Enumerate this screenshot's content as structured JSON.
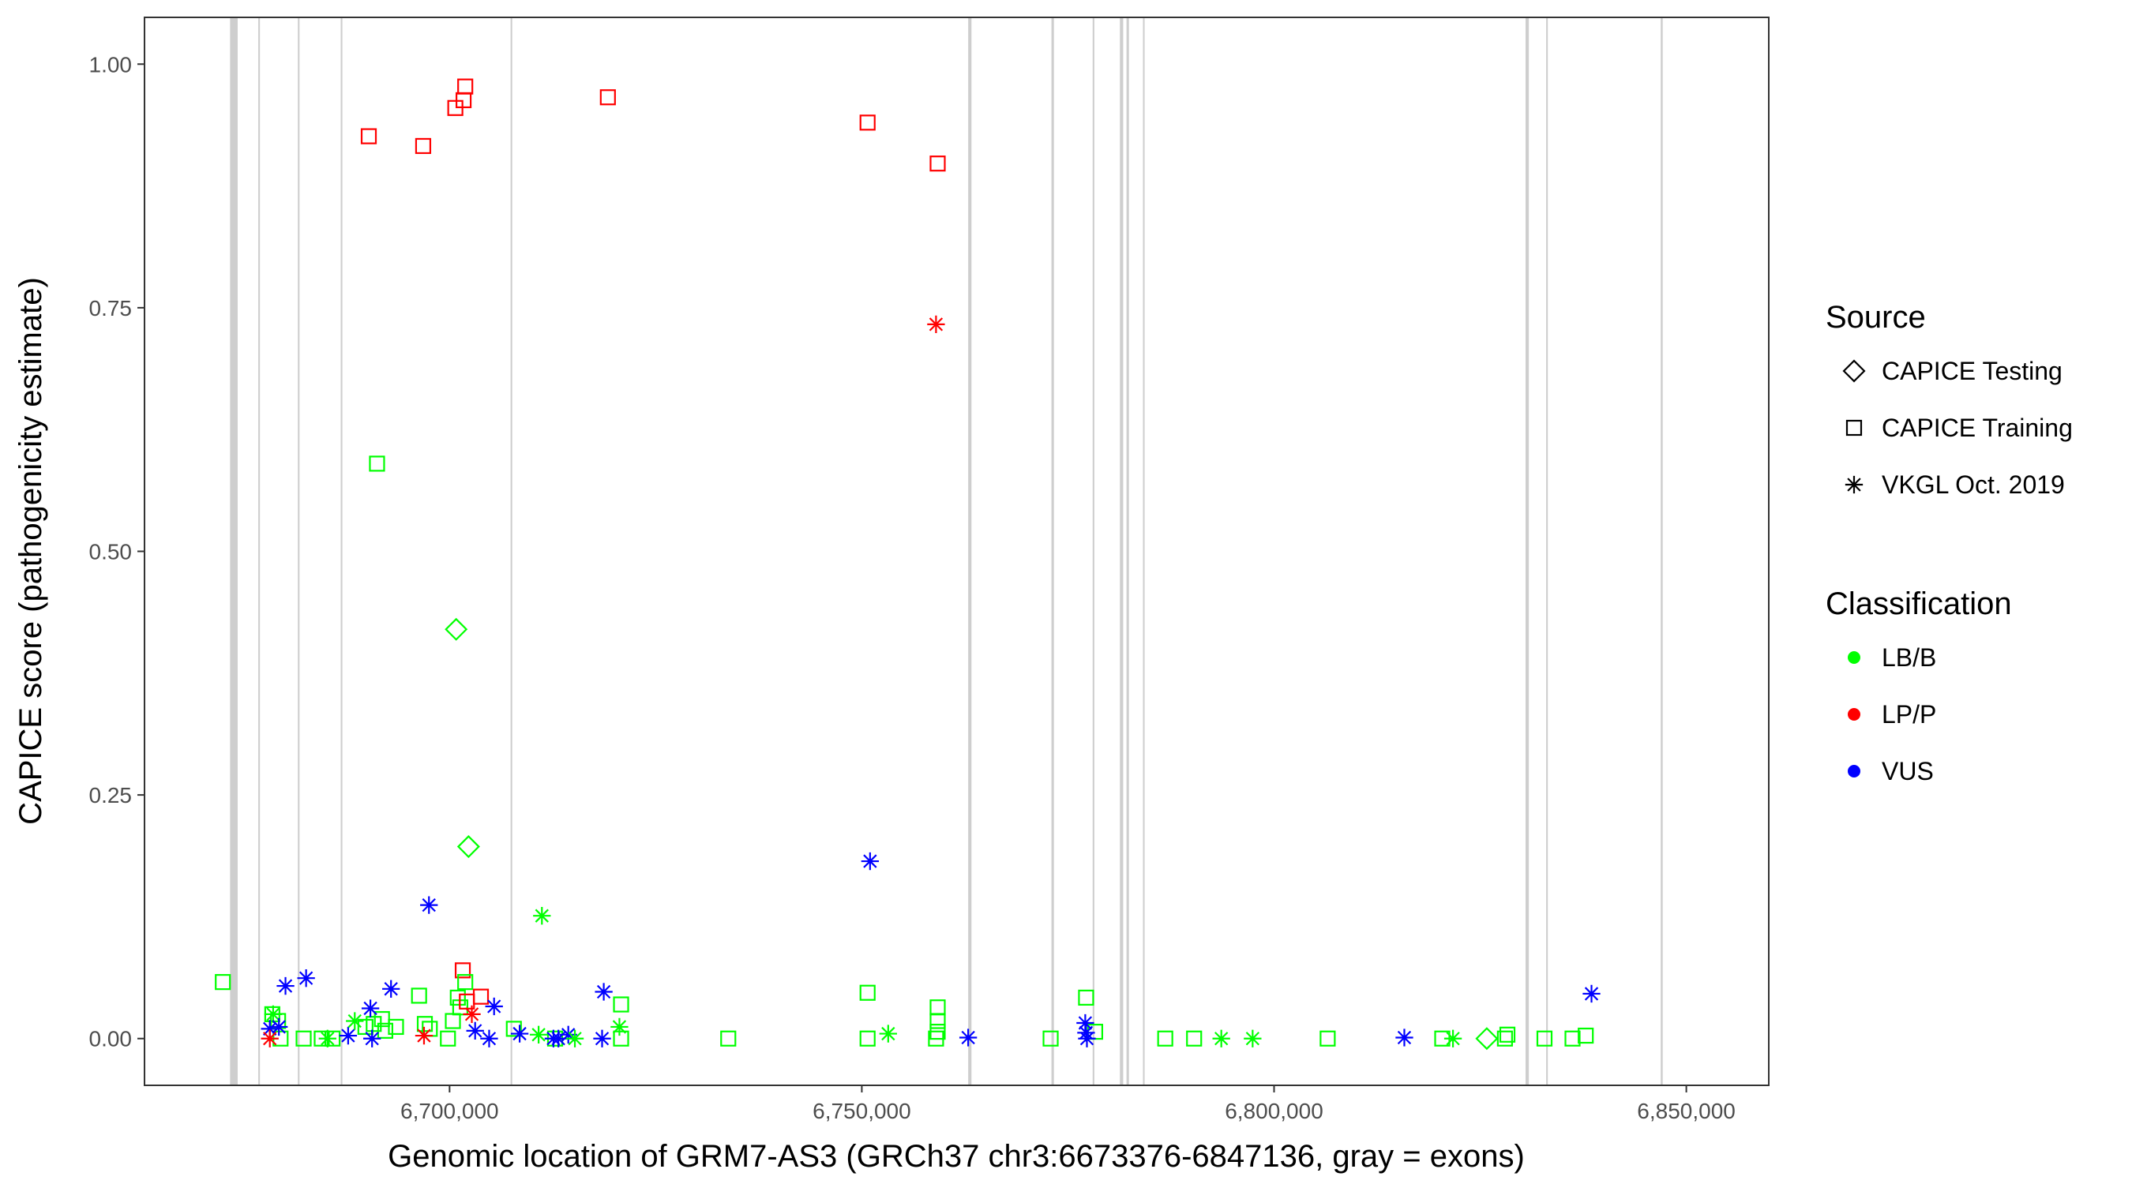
{
  "chart_data": {
    "type": "scatter",
    "xlabel": "Genomic location of GRM7-AS3 (GRCh37 chr3:6673376-6847136, gray = exons)",
    "ylabel": "CAPICE score (pathogenicity estimate)",
    "xlim": [
      6663000,
      6860000
    ],
    "ylim": [
      -0.048,
      1.048
    ],
    "x_ticks": [
      6700000,
      6750000,
      6800000,
      6850000
    ],
    "x_tick_labels": [
      "6,700,000",
      "6,750,000",
      "6,800,000",
      "6,850,000"
    ],
    "y_ticks": [
      0.0,
      0.25,
      0.5,
      0.75,
      1.0
    ],
    "y_tick_labels": [
      "0.00",
      "0.25",
      "0.50",
      "0.75",
      "1.00"
    ],
    "grid": false,
    "exons": [
      {
        "start": 6673376,
        "end": 6674300
      },
      {
        "start": 6676800,
        "end": 6677000
      },
      {
        "start": 6681600,
        "end": 6681800
      },
      {
        "start": 6686800,
        "end": 6687000
      },
      {
        "start": 6707400,
        "end": 6707600
      },
      {
        "start": 6762900,
        "end": 6763300
      },
      {
        "start": 6773000,
        "end": 6773300
      },
      {
        "start": 6778000,
        "end": 6778200
      },
      {
        "start": 6781300,
        "end": 6781700
      },
      {
        "start": 6782100,
        "end": 6782400
      },
      {
        "start": 6784100,
        "end": 6784300
      },
      {
        "start": 6830500,
        "end": 6830900
      },
      {
        "start": 6833000,
        "end": 6833200
      },
      {
        "start": 6846900,
        "end": 6847136
      }
    ],
    "legend": {
      "placement": "right",
      "source_title": "Source",
      "source_entries": [
        {
          "label": "CAPICE Testing",
          "shape": "diamond"
        },
        {
          "label": "CAPICE Training",
          "shape": "square"
        },
        {
          "label": "VKGL Oct. 2019",
          "shape": "asterisk"
        }
      ],
      "class_title": "Classification",
      "class_entries": [
        {
          "label": "LB/B",
          "color": "#00ff00"
        },
        {
          "label": "LP/P",
          "color": "#ff0000"
        },
        {
          "label": "VUS",
          "color": "#0000ff"
        }
      ]
    },
    "colors": {
      "LB/B": "#00ff00",
      "LP/P": "#ff0000",
      "VUS": "#0000ff",
      "exon": "#bdbdbd"
    },
    "points": [
      {
        "x": 6672500,
        "y": 0.058,
        "source": "CAPICE Training",
        "cls": "LB/B"
      },
      {
        "x": 6678500,
        "y": 0.025,
        "source": "CAPICE Training",
        "cls": "LB/B"
      },
      {
        "x": 6679200,
        "y": 0.018,
        "source": "CAPICE Training",
        "cls": "LB/B"
      },
      {
        "x": 6679500,
        "y": 0.0,
        "source": "CAPICE Training",
        "cls": "LB/B"
      },
      {
        "x": 6682300,
        "y": 0.0,
        "source": "CAPICE Training",
        "cls": "LB/B"
      },
      {
        "x": 6684500,
        "y": 0.0,
        "source": "CAPICE Training",
        "cls": "LB/B"
      },
      {
        "x": 6685800,
        "y": 0.0,
        "source": "CAPICE Training",
        "cls": "LB/B"
      },
      {
        "x": 6690200,
        "y": 0.926,
        "source": "CAPICE Training",
        "cls": "LP/P"
      },
      {
        "x": 6689800,
        "y": 0.012,
        "source": "CAPICE Training",
        "cls": "LB/B"
      },
      {
        "x": 6690800,
        "y": 0.015,
        "source": "CAPICE Training",
        "cls": "LB/B"
      },
      {
        "x": 6691200,
        "y": 0.59,
        "source": "CAPICE Training",
        "cls": "LB/B"
      },
      {
        "x": 6691800,
        "y": 0.02,
        "source": "CAPICE Training",
        "cls": "LB/B"
      },
      {
        "x": 6692200,
        "y": 0.008,
        "source": "CAPICE Training",
        "cls": "LB/B"
      },
      {
        "x": 6693500,
        "y": 0.012,
        "source": "CAPICE Training",
        "cls": "LB/B"
      },
      {
        "x": 6696300,
        "y": 0.044,
        "source": "CAPICE Training",
        "cls": "LB/B"
      },
      {
        "x": 6696800,
        "y": 0.916,
        "source": "CAPICE Training",
        "cls": "LP/P"
      },
      {
        "x": 6697000,
        "y": 0.015,
        "source": "CAPICE Training",
        "cls": "LB/B"
      },
      {
        "x": 6697600,
        "y": 0.01,
        "source": "CAPICE Training",
        "cls": "LB/B"
      },
      {
        "x": 6699800,
        "y": 0.0,
        "source": "CAPICE Training",
        "cls": "LB/B"
      },
      {
        "x": 6700400,
        "y": 0.018,
        "source": "CAPICE Training",
        "cls": "LB/B"
      },
      {
        "x": 6700700,
        "y": 0.955,
        "source": "CAPICE Training",
        "cls": "LP/P"
      },
      {
        "x": 6701000,
        "y": 0.042,
        "source": "CAPICE Training",
        "cls": "LB/B"
      },
      {
        "x": 6701300,
        "y": 0.032,
        "source": "CAPICE Training",
        "cls": "LB/B"
      },
      {
        "x": 6701600,
        "y": 0.07,
        "source": "CAPICE Training",
        "cls": "LP/P"
      },
      {
        "x": 6701700,
        "y": 0.963,
        "source": "CAPICE Training",
        "cls": "LP/P"
      },
      {
        "x": 6701900,
        "y": 0.977,
        "source": "CAPICE Training",
        "cls": "LP/P"
      },
      {
        "x": 6701900,
        "y": 0.058,
        "source": "CAPICE Training",
        "cls": "LB/B"
      },
      {
        "x": 6702100,
        "y": 0.038,
        "source": "CAPICE Training",
        "cls": "LP/P"
      },
      {
        "x": 6703800,
        "y": 0.043,
        "source": "CAPICE Training",
        "cls": "LP/P"
      },
      {
        "x": 6707800,
        "y": 0.01,
        "source": "CAPICE Training",
        "cls": "LB/B"
      },
      {
        "x": 6712800,
        "y": 0.0,
        "source": "CAPICE Training",
        "cls": "LB/B"
      },
      {
        "x": 6719200,
        "y": 0.966,
        "source": "CAPICE Training",
        "cls": "LP/P"
      },
      {
        "x": 6720800,
        "y": 0.035,
        "source": "CAPICE Training",
        "cls": "LB/B"
      },
      {
        "x": 6720800,
        "y": 0.0,
        "source": "CAPICE Training",
        "cls": "LB/B"
      },
      {
        "x": 6733800,
        "y": 0.0,
        "source": "CAPICE Training",
        "cls": "LB/B"
      },
      {
        "x": 6750700,
        "y": 0.94,
        "source": "CAPICE Training",
        "cls": "LP/P"
      },
      {
        "x": 6750700,
        "y": 0.047,
        "source": "CAPICE Training",
        "cls": "LB/B"
      },
      {
        "x": 6750700,
        "y": 0.0,
        "source": "CAPICE Training",
        "cls": "LB/B"
      },
      {
        "x": 6759200,
        "y": 0.898,
        "source": "CAPICE Training",
        "cls": "LP/P"
      },
      {
        "x": 6759200,
        "y": 0.032,
        "source": "CAPICE Training",
        "cls": "LB/B"
      },
      {
        "x": 6759200,
        "y": 0.018,
        "source": "CAPICE Training",
        "cls": "LB/B"
      },
      {
        "x": 6759200,
        "y": 0.007,
        "source": "CAPICE Training",
        "cls": "LB/B"
      },
      {
        "x": 6759000,
        "y": 0.0,
        "source": "CAPICE Training",
        "cls": "LB/B"
      },
      {
        "x": 6772900,
        "y": 0.0,
        "source": "CAPICE Training",
        "cls": "LB/B"
      },
      {
        "x": 6777200,
        "y": 0.042,
        "source": "CAPICE Training",
        "cls": "LB/B"
      },
      {
        "x": 6778300,
        "y": 0.007,
        "source": "CAPICE Training",
        "cls": "LB/B"
      },
      {
        "x": 6786800,
        "y": 0.0,
        "source": "CAPICE Training",
        "cls": "LB/B"
      },
      {
        "x": 6790300,
        "y": 0.0,
        "source": "CAPICE Training",
        "cls": "LB/B"
      },
      {
        "x": 6806500,
        "y": 0.0,
        "source": "CAPICE Training",
        "cls": "LB/B"
      },
      {
        "x": 6820400,
        "y": 0.0,
        "source": "CAPICE Training",
        "cls": "LB/B"
      },
      {
        "x": 6828000,
        "y": 0.0,
        "source": "CAPICE Training",
        "cls": "LB/B"
      },
      {
        "x": 6828300,
        "y": 0.004,
        "source": "CAPICE Training",
        "cls": "LB/B"
      },
      {
        "x": 6832800,
        "y": 0.0,
        "source": "CAPICE Training",
        "cls": "LB/B"
      },
      {
        "x": 6836200,
        "y": 0.0,
        "source": "CAPICE Training",
        "cls": "LB/B"
      },
      {
        "x": 6837800,
        "y": 0.003,
        "source": "CAPICE Training",
        "cls": "LB/B"
      },
      {
        "x": 6700800,
        "y": 0.42,
        "source": "CAPICE Testing",
        "cls": "LB/B"
      },
      {
        "x": 6702300,
        "y": 0.197,
        "source": "CAPICE Testing",
        "cls": "LB/B"
      },
      {
        "x": 6825800,
        "y": 0.0,
        "source": "CAPICE Testing",
        "cls": "LB/B"
      },
      {
        "x": 6678200,
        "y": 0.01,
        "source": "VKGL Oct. 2019",
        "cls": "VUS"
      },
      {
        "x": 6678200,
        "y": 0.0,
        "source": "VKGL Oct. 2019",
        "cls": "LP/P"
      },
      {
        "x": 6678600,
        "y": 0.025,
        "source": "VKGL Oct. 2019",
        "cls": "LB/B"
      },
      {
        "x": 6679300,
        "y": 0.012,
        "source": "VKGL Oct. 2019",
        "cls": "VUS"
      },
      {
        "x": 6680100,
        "y": 0.054,
        "source": "VKGL Oct. 2019",
        "cls": "VUS"
      },
      {
        "x": 6682600,
        "y": 0.062,
        "source": "VKGL Oct. 2019",
        "cls": "VUS"
      },
      {
        "x": 6685200,
        "y": 0.0,
        "source": "VKGL Oct. 2019",
        "cls": "LB/B"
      },
      {
        "x": 6687700,
        "y": 0.003,
        "source": "VKGL Oct. 2019",
        "cls": "VUS"
      },
      {
        "x": 6688500,
        "y": 0.018,
        "source": "VKGL Oct. 2019",
        "cls": "LB/B"
      },
      {
        "x": 6690400,
        "y": 0.031,
        "source": "VKGL Oct. 2019",
        "cls": "VUS"
      },
      {
        "x": 6690600,
        "y": 0.0,
        "source": "VKGL Oct. 2019",
        "cls": "VUS"
      },
      {
        "x": 6692900,
        "y": 0.051,
        "source": "VKGL Oct. 2019",
        "cls": "VUS"
      },
      {
        "x": 6696900,
        "y": 0.003,
        "source": "VKGL Oct. 2019",
        "cls": "LP/P"
      },
      {
        "x": 6697500,
        "y": 0.137,
        "source": "VKGL Oct. 2019",
        "cls": "VUS"
      },
      {
        "x": 6702700,
        "y": 0.025,
        "source": "VKGL Oct. 2019",
        "cls": "LP/P"
      },
      {
        "x": 6703100,
        "y": 0.008,
        "source": "VKGL Oct. 2019",
        "cls": "VUS"
      },
      {
        "x": 6704800,
        "y": 0.0,
        "source": "VKGL Oct. 2019",
        "cls": "VUS"
      },
      {
        "x": 6705400,
        "y": 0.033,
        "source": "VKGL Oct. 2019",
        "cls": "VUS"
      },
      {
        "x": 6708500,
        "y": 0.005,
        "source": "VKGL Oct. 2019",
        "cls": "VUS"
      },
      {
        "x": 6710800,
        "y": 0.004,
        "source": "VKGL Oct. 2019",
        "cls": "LB/B"
      },
      {
        "x": 6711200,
        "y": 0.126,
        "source": "VKGL Oct. 2019",
        "cls": "LB/B"
      },
      {
        "x": 6712600,
        "y": 0.0,
        "source": "VKGL Oct. 2019",
        "cls": "VUS"
      },
      {
        "x": 6713200,
        "y": 0.0,
        "source": "VKGL Oct. 2019",
        "cls": "VUS"
      },
      {
        "x": 6714400,
        "y": 0.004,
        "source": "VKGL Oct. 2019",
        "cls": "VUS"
      },
      {
        "x": 6715200,
        "y": 0.0,
        "source": "VKGL Oct. 2019",
        "cls": "LB/B"
      },
      {
        "x": 6718500,
        "y": 0.0,
        "source": "VKGL Oct. 2019",
        "cls": "VUS"
      },
      {
        "x": 6718700,
        "y": 0.048,
        "source": "VKGL Oct. 2019",
        "cls": "VUS"
      },
      {
        "x": 6720600,
        "y": 0.012,
        "source": "VKGL Oct. 2019",
        "cls": "LB/B"
      },
      {
        "x": 6751000,
        "y": 0.182,
        "source": "VKGL Oct. 2019",
        "cls": "VUS"
      },
      {
        "x": 6753200,
        "y": 0.005,
        "source": "VKGL Oct. 2019",
        "cls": "LB/B"
      },
      {
        "x": 6759000,
        "y": 0.733,
        "source": "VKGL Oct. 2019",
        "cls": "LP/P"
      },
      {
        "x": 6762900,
        "y": 0.001,
        "source": "VKGL Oct. 2019",
        "cls": "VUS"
      },
      {
        "x": 6777100,
        "y": 0.016,
        "source": "VKGL Oct. 2019",
        "cls": "VUS"
      },
      {
        "x": 6777200,
        "y": 0.006,
        "source": "VKGL Oct. 2019",
        "cls": "VUS"
      },
      {
        "x": 6777300,
        "y": 0.0,
        "source": "VKGL Oct. 2019",
        "cls": "VUS"
      },
      {
        "x": 6793600,
        "y": 0.0,
        "source": "VKGL Oct. 2019",
        "cls": "LB/B"
      },
      {
        "x": 6797400,
        "y": 0.0,
        "source": "VKGL Oct. 2019",
        "cls": "LB/B"
      },
      {
        "x": 6815800,
        "y": 0.001,
        "source": "VKGL Oct. 2019",
        "cls": "VUS"
      },
      {
        "x": 6821700,
        "y": 0.0,
        "source": "VKGL Oct. 2019",
        "cls": "LB/B"
      },
      {
        "x": 6838500,
        "y": 0.046,
        "source": "VKGL Oct. 2019",
        "cls": "VUS"
      }
    ]
  }
}
